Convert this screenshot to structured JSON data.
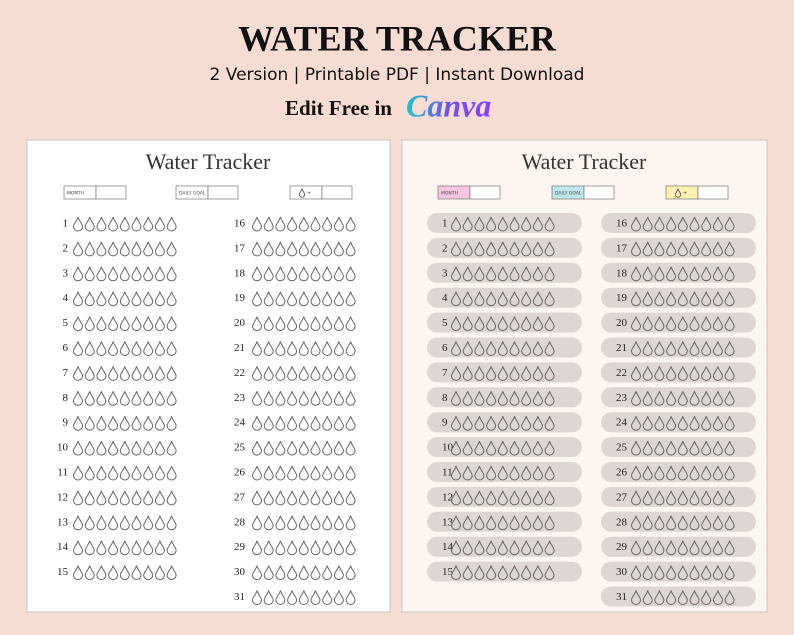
{
  "header": {
    "title": "WATER TRACKER",
    "subtitle": "2 Version | Printable PDF | Instant Download",
    "edit_text": "Edit Free in",
    "brand": "Canva"
  },
  "pages": [
    {
      "title": "Water Tracker",
      "fields": [
        "MONTH",
        "DAILY GOAL",
        "+"
      ],
      "days": [
        1,
        2,
        3,
        4,
        5,
        6,
        7,
        8,
        9,
        10,
        11,
        12,
        13,
        14,
        15,
        16,
        17,
        18,
        19,
        20,
        21,
        22,
        23,
        24,
        25,
        26,
        27,
        28,
        29,
        30,
        31
      ]
    },
    {
      "title": "Water Tracker",
      "fields": [
        "MONTH",
        "DAILY GOAL",
        "+"
      ],
      "days": [
        1,
        2,
        3,
        4,
        5,
        6,
        7,
        8,
        9,
        10,
        11,
        12,
        13,
        14,
        15,
        16,
        17,
        18,
        19,
        20,
        21,
        22,
        23,
        24,
        25,
        26,
        27,
        28,
        29,
        30,
        31
      ]
    }
  ]
}
